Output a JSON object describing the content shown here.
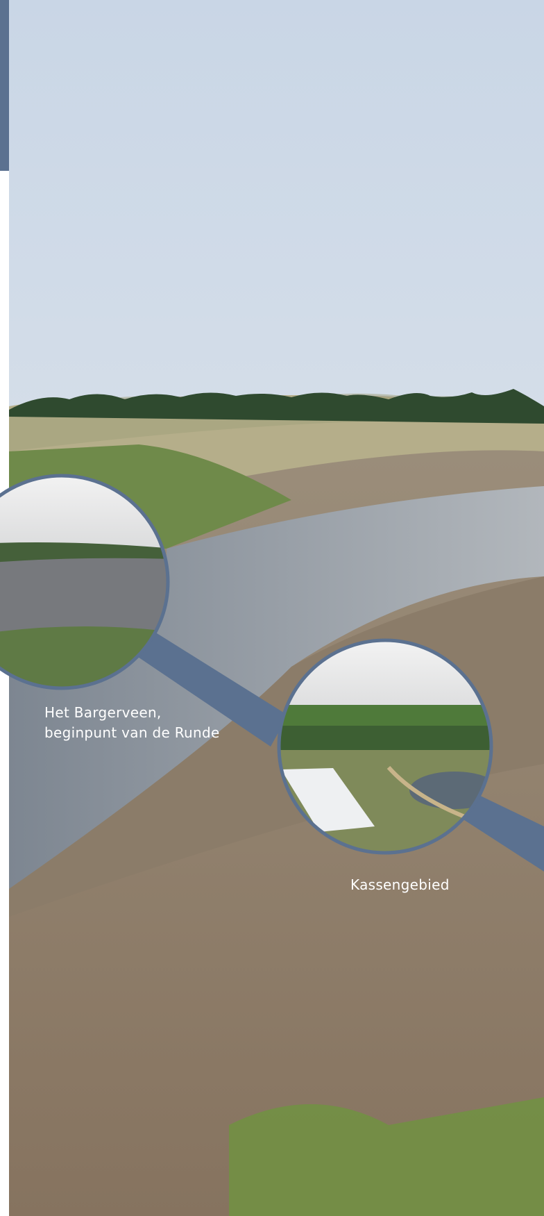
{
  "captions": {
    "bargerveen": {
      "line1": "Het Bargerveen,",
      "line2": "beginpunt van de Runde"
    },
    "kassen": "Kassengebied"
  }
}
